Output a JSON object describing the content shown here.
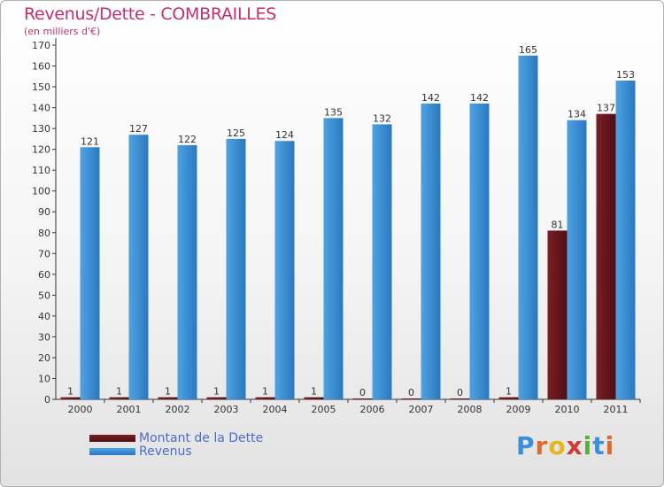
{
  "header": {
    "title": "Revenus/Dette - COMBRAILLES",
    "subtitle": "(en milliers d'€)"
  },
  "colors": {
    "dette": "#7a1f24",
    "revenus": "#4ea3e3",
    "title": "#c0306e"
  },
  "chart_data": {
    "type": "bar",
    "title": "Revenus/Dette - COMBRAILLES",
    "ylabel": "(en milliers d'€)",
    "categories": [
      "2000",
      "2001",
      "2002",
      "2003",
      "2004",
      "2005",
      "2006",
      "2007",
      "2008",
      "2009",
      "2010",
      "2011"
    ],
    "series": [
      {
        "name": "Montant de la Dette",
        "values": [
          1,
          1,
          1,
          1,
          1,
          1,
          0,
          0,
          0,
          1,
          81,
          137
        ]
      },
      {
        "name": "Revenus",
        "values": [
          121,
          127,
          122,
          125,
          124,
          135,
          132,
          142,
          142,
          165,
          134,
          153
        ]
      }
    ],
    "ylim": [
      0,
      170
    ],
    "yticks": [
      0,
      10,
      20,
      30,
      40,
      50,
      60,
      70,
      80,
      90,
      100,
      110,
      120,
      130,
      140,
      150,
      160,
      170
    ],
    "grid": false,
    "legend_position": "bottom-left"
  },
  "legend": [
    {
      "label": "Montant de la Dette"
    },
    {
      "label": "Revenus"
    }
  ],
  "logo": {
    "letters": [
      "P",
      "r",
      "o",
      "x",
      "i",
      "t",
      "i"
    ],
    "colors": [
      "#3a8fd8",
      "#e06a2c",
      "#e8b320",
      "#d23a3a",
      "#5cae3a",
      "#3a8fd8",
      "#e06a2c"
    ]
  }
}
